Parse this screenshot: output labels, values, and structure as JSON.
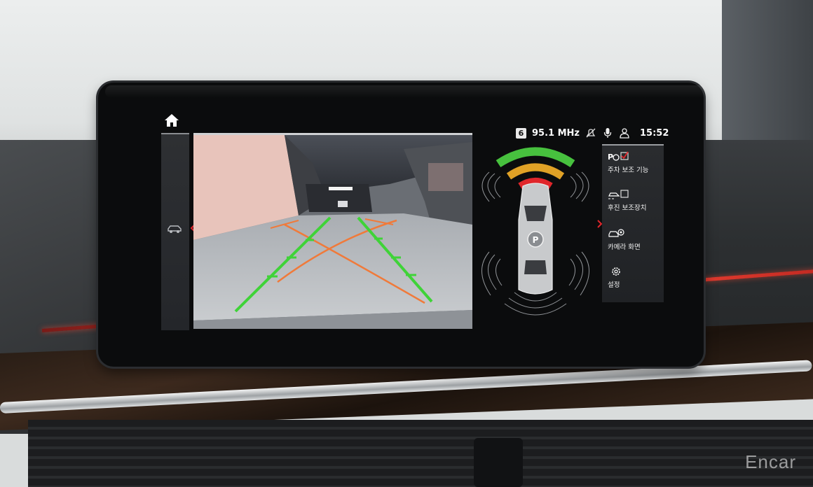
{
  "status_bar": {
    "radio_preset": "6",
    "frequency": "95.1 MHz",
    "time": "15:52",
    "icons": [
      "notification-muted-icon",
      "microphone-icon",
      "driver-profile-icon"
    ]
  },
  "navigation": {
    "home_icon": "home-icon",
    "side_icon": "vehicle-icon",
    "left_arrow": "chevron-left-icon",
    "right_arrow": "chevron-right-icon"
  },
  "parking_menu": {
    "items": [
      {
        "label": "주차 보조 기능",
        "icon": "park-assist-icon",
        "checked": true
      },
      {
        "label": "후진 보조장치",
        "icon": "reversing-assist-icon",
        "checked": false
      },
      {
        "label": "카메라 화면",
        "icon": "camera-view-icon"
      },
      {
        "label": "설정",
        "icon": "settings-gear-icon"
      }
    ]
  },
  "pdc": {
    "car_badge": "P",
    "front_zone_colors": [
      "#47c13e",
      "#e0a126",
      "#e0262b"
    ]
  },
  "colors": {
    "accent_red": "#e0262b",
    "guide_green": "#3fd338",
    "guide_orange": "#f07a3a"
  },
  "watermark": "Encar"
}
